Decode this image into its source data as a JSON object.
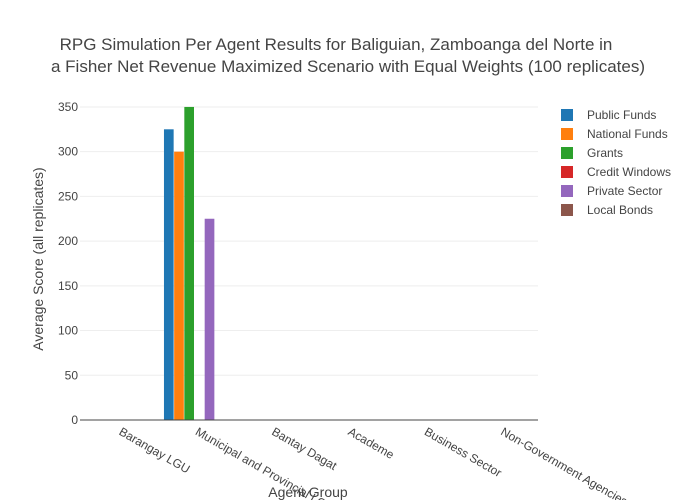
{
  "chart_data": {
    "type": "bar",
    "title_line1": "RPG Simulation Per Agent Results for Baliguian, Zamboanga del Norte in",
    "title_line2": "a Fisher Net Revenue Maximized Scenario with Equal Weights (100 replicates)",
    "xlabel": "Agent Group",
    "ylabel": "Average Score (all replicates)",
    "ylim": [
      0,
      360
    ],
    "yticks": [
      0,
      50,
      100,
      150,
      200,
      250,
      300,
      350
    ],
    "categories": [
      "Barangay LGU",
      "Municipal and Provincial LGU",
      "Bantay Dagat",
      "Academe",
      "Business Sector",
      "Non-Government Agencies"
    ],
    "series": [
      {
        "name": "Public Funds",
        "color": "#1f77b4",
        "values": [
          0,
          325,
          0,
          0,
          0,
          0
        ]
      },
      {
        "name": "National Funds",
        "color": "#ff7f0e",
        "values": [
          0,
          300,
          0,
          0,
          0,
          0
        ]
      },
      {
        "name": "Grants",
        "color": "#2ca02c",
        "values": [
          0,
          350,
          0,
          0,
          0,
          0
        ]
      },
      {
        "name": "Credit Windows",
        "color": "#d62728",
        "values": [
          0,
          0,
          0,
          0,
          0,
          0
        ]
      },
      {
        "name": "Private Sector",
        "color": "#9467bd",
        "values": [
          0,
          225,
          0,
          0,
          0,
          0
        ]
      },
      {
        "name": "Local Bonds",
        "color": "#8c564b",
        "values": [
          0,
          0,
          0,
          0,
          0,
          0
        ]
      }
    ],
    "grid": true,
    "legend_position": "top-right"
  }
}
